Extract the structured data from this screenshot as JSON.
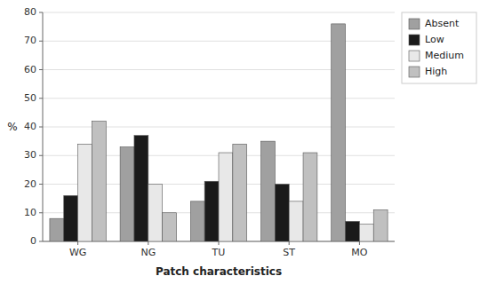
{
  "chart_data": {
    "type": "bar",
    "categories": [
      "WG",
      "NG",
      "TU",
      "ST",
      "MO"
    ],
    "series": [
      {
        "name": "Absent",
        "color": "#a0a0a0",
        "values": [
          8,
          33,
          14,
          35,
          76
        ]
      },
      {
        "name": "Low",
        "color": "#1a1a1a",
        "values": [
          16,
          37,
          21,
          20,
          7
        ]
      },
      {
        "name": "Medium",
        "color": "#e8e8e8",
        "values": [
          34,
          20,
          31,
          14,
          6
        ]
      },
      {
        "name": "High",
        "color": "#c0c0c0",
        "values": [
          42,
          10,
          34,
          31,
          11
        ]
      }
    ],
    "xlabel": "Patch characteristics",
    "ylabel": "%",
    "ylim": [
      0,
      80
    ],
    "yticks": [
      0,
      10,
      20,
      30,
      40,
      50,
      60,
      70,
      80
    ],
    "grid": true,
    "legend": "upper right"
  }
}
